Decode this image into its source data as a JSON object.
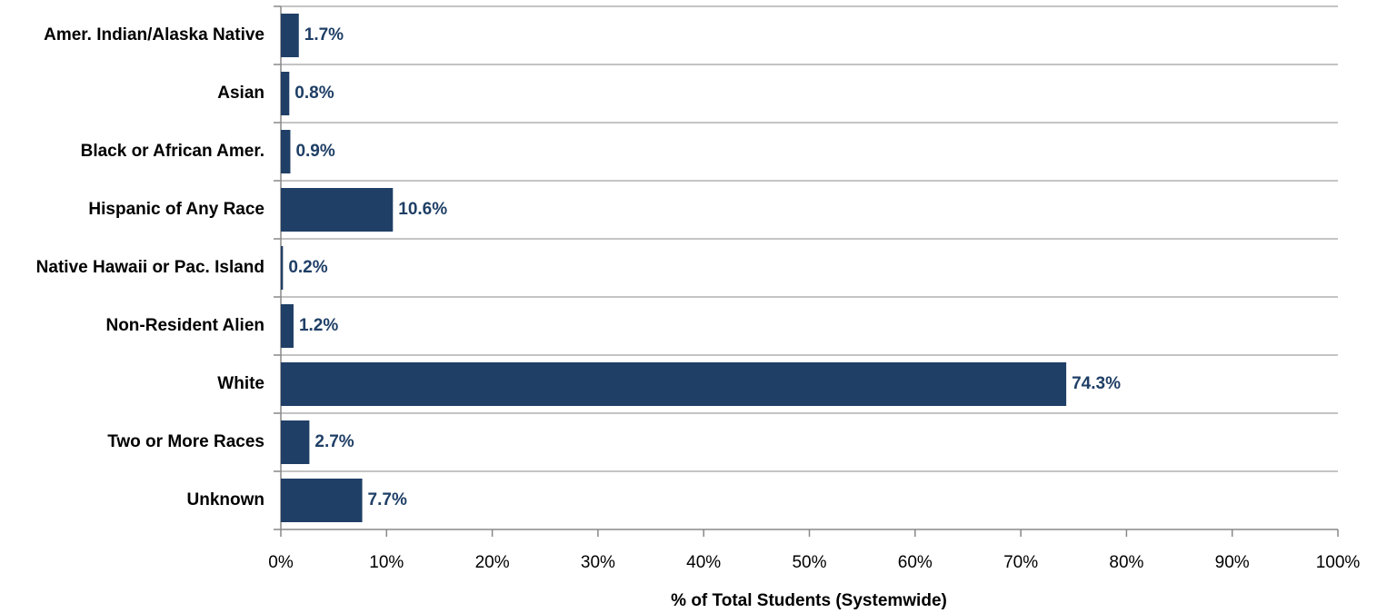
{
  "chart_data": {
    "type": "bar",
    "orientation": "horizontal",
    "x_label": "% of Total Students (Systemwide)",
    "categories": [
      "Amer. Indian/Alaska Native",
      "Asian",
      "Black or African Amer.",
      "Hispanic of Any Race",
      "Native Hawaii or Pac. Island",
      "Non-Resident Alien",
      "White",
      "Two or More Races",
      "Unknown"
    ],
    "values": [
      1.7,
      0.8,
      0.9,
      10.6,
      0.2,
      1.2,
      74.3,
      2.7,
      7.7
    ],
    "value_labels": [
      "1.7%",
      "0.8%",
      "0.9%",
      "10.6%",
      "0.2%",
      "1.2%",
      "74.3%",
      "2.7%",
      "7.7%"
    ],
    "color": "#1f3f66",
    "xlim": [
      0,
      100
    ],
    "xticks": [
      {
        "value": 0,
        "label": "0%"
      },
      {
        "value": 10,
        "label": "10%"
      },
      {
        "value": 20,
        "label": "20%"
      },
      {
        "value": 30,
        "label": "30%"
      },
      {
        "value": 40,
        "label": "40%"
      },
      {
        "value": 50,
        "label": "50%"
      },
      {
        "value": 60,
        "label": "60%"
      },
      {
        "value": 70,
        "label": "70%"
      },
      {
        "value": 80,
        "label": "80%"
      },
      {
        "value": 90,
        "label": "90%"
      },
      {
        "value": 100,
        "label": "100%"
      }
    ]
  }
}
